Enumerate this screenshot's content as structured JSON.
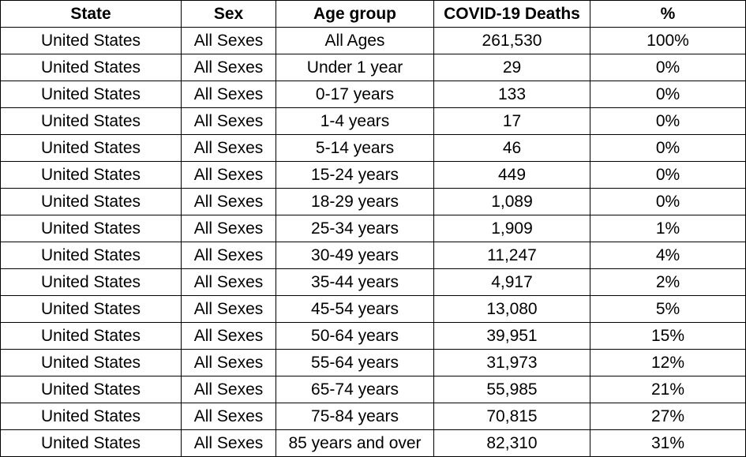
{
  "table": {
    "columns": [
      "State",
      "Sex",
      "Age group",
      "COVID-19 Deaths",
      "%"
    ],
    "rows": [
      [
        "United States",
        "All Sexes",
        "All Ages",
        "261,530",
        "100%"
      ],
      [
        "United States",
        "All Sexes",
        "Under 1 year",
        "29",
        "0%"
      ],
      [
        "United States",
        "All Sexes",
        "0-17 years",
        "133",
        "0%"
      ],
      [
        "United States",
        "All Sexes",
        "1-4 years",
        "17",
        "0%"
      ],
      [
        "United States",
        "All Sexes",
        "5-14 years",
        "46",
        "0%"
      ],
      [
        "United States",
        "All Sexes",
        "15-24 years",
        "449",
        "0%"
      ],
      [
        "United States",
        "All Sexes",
        "18-29 years",
        "1,089",
        "0%"
      ],
      [
        "United States",
        "All Sexes",
        "25-34 years",
        "1,909",
        "1%"
      ],
      [
        "United States",
        "All Sexes",
        "30-49 years",
        "11,247",
        "4%"
      ],
      [
        "United States",
        "All Sexes",
        "35-44 years",
        "4,917",
        "2%"
      ],
      [
        "United States",
        "All Sexes",
        "45-54 years",
        "13,080",
        "5%"
      ],
      [
        "United States",
        "All Sexes",
        "50-64 years",
        "39,951",
        "15%"
      ],
      [
        "United States",
        "All Sexes",
        "55-64 years",
        "31,973",
        "12%"
      ],
      [
        "United States",
        "All Sexes",
        "65-74 years",
        "55,985",
        "21%"
      ],
      [
        "United States",
        "All Sexes",
        "75-84 years",
        "70,815",
        "27%"
      ],
      [
        "United States",
        "All Sexes",
        "85 years and over",
        "82,310",
        "31%"
      ]
    ]
  }
}
